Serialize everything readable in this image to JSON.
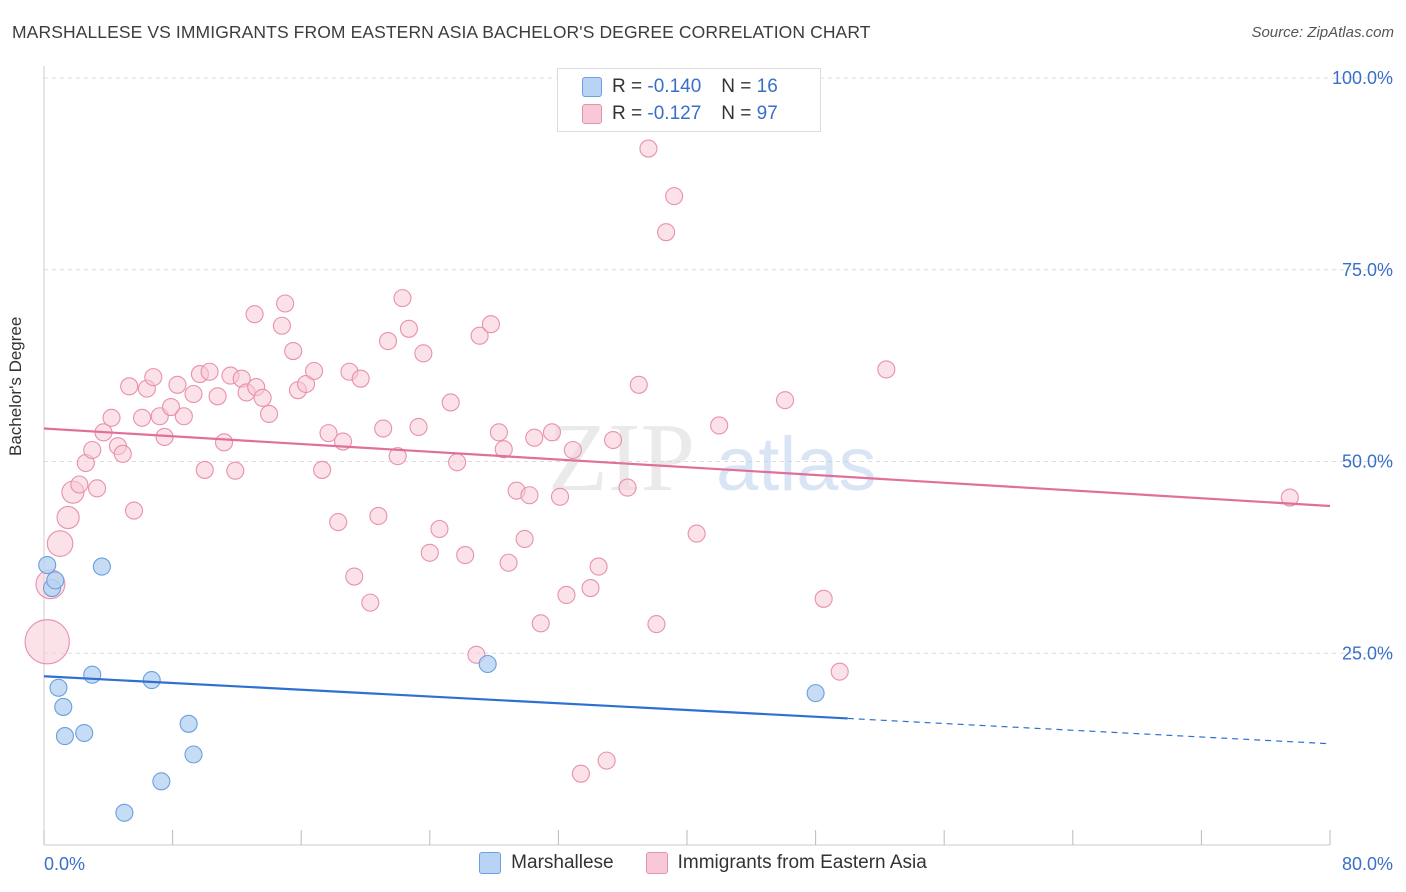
{
  "title": "MARSHALLESE VS IMMIGRANTS FROM EASTERN ASIA BACHELOR'S DEGREE CORRELATION CHART",
  "source": "Source: ZipAtlas.com",
  "watermark": {
    "zip": "ZIP",
    "atlas": "atlas"
  },
  "legend": {
    "rows": [
      {
        "r_label": "R =",
        "r_value": "-0.140",
        "n_label": "N =",
        "n_value": "16"
      },
      {
        "r_label": "R =",
        "r_value": "-0.127",
        "n_label": "N =",
        "n_value": "97"
      }
    ]
  },
  "colors": {
    "blue_fill": "#b8d3f3",
    "blue_stroke": "#6a9fe0",
    "blue_line": "#2e70d2",
    "pink_fill": "#f7c8d6",
    "pink_stroke": "#e891ac",
    "pink_line": "#e0709a",
    "axis_text": "#3a6fc9"
  },
  "chart_data": {
    "type": "scatter",
    "title": "MARSHALLESE VS IMMIGRANTS FROM EASTERN ASIA BACHELOR'S DEGREE CORRELATION CHART",
    "xlabel": "",
    "ylabel": "Bachelor's Degree",
    "xlim": [
      0,
      80
    ],
    "ylim": [
      0,
      100
    ],
    "x_tick_labels": [
      "0.0%",
      "80.0%"
    ],
    "y_ticks": [
      25,
      50,
      75,
      100
    ],
    "y_tick_labels": [
      "25.0%",
      "50.0%",
      "75.0%",
      "100.0%"
    ],
    "grid": true,
    "series": [
      {
        "name": "Marshallese",
        "color": "#6a9fe0",
        "r": -0.14,
        "n": 16,
        "points": [
          {
            "x": 0.2,
            "y": 36.5,
            "s": 1
          },
          {
            "x": 0.5,
            "y": 33.5,
            "s": 1
          },
          {
            "x": 0.7,
            "y": 34.5,
            "s": 1
          },
          {
            "x": 3.6,
            "y": 36.3,
            "s": 1
          },
          {
            "x": 0.9,
            "y": 20.5,
            "s": 1
          },
          {
            "x": 1.2,
            "y": 18.0,
            "s": 1
          },
          {
            "x": 1.3,
            "y": 14.2,
            "s": 1
          },
          {
            "x": 2.5,
            "y": 14.6,
            "s": 1
          },
          {
            "x": 3.0,
            "y": 22.2,
            "s": 1
          },
          {
            "x": 6.7,
            "y": 21.5,
            "s": 1
          },
          {
            "x": 9.0,
            "y": 15.8,
            "s": 1
          },
          {
            "x": 9.3,
            "y": 11.8,
            "s": 1
          },
          {
            "x": 7.3,
            "y": 8.3,
            "s": 1
          },
          {
            "x": 5.0,
            "y": 4.2,
            "s": 1
          },
          {
            "x": 27.6,
            "y": 23.6,
            "s": 1
          },
          {
            "x": 48.0,
            "y": 19.8,
            "s": 1
          }
        ],
        "trend": {
          "x_start": 0,
          "y_start": 22.0,
          "x_solid_end": 50,
          "y_solid_end": 16.5,
          "x_end": 80,
          "y_end": 13.2
        }
      },
      {
        "name": "Immigrants from Eastern Asia",
        "color": "#e891ac",
        "r": -0.127,
        "n": 97,
        "points": [
          {
            "x": 0.2,
            "y": 26.5,
            "s": 2.6
          },
          {
            "x": 0.4,
            "y": 34.0,
            "s": 1.7
          },
          {
            "x": 1.0,
            "y": 39.3,
            "s": 1.5
          },
          {
            "x": 1.5,
            "y": 42.7,
            "s": 1.3
          },
          {
            "x": 1.8,
            "y": 46.0,
            "s": 1.3
          },
          {
            "x": 2.2,
            "y": 47.0,
            "s": 1
          },
          {
            "x": 2.6,
            "y": 49.8,
            "s": 1
          },
          {
            "x": 3.0,
            "y": 51.5,
            "s": 1
          },
          {
            "x": 3.3,
            "y": 46.5,
            "s": 1
          },
          {
            "x": 3.7,
            "y": 53.8,
            "s": 1
          },
          {
            "x": 4.2,
            "y": 55.7,
            "s": 1
          },
          {
            "x": 4.6,
            "y": 52.0,
            "s": 1
          },
          {
            "x": 4.9,
            "y": 51.0,
            "s": 1
          },
          {
            "x": 5.3,
            "y": 59.8,
            "s": 1
          },
          {
            "x": 5.6,
            "y": 43.6,
            "s": 1
          },
          {
            "x": 6.1,
            "y": 55.7,
            "s": 1
          },
          {
            "x": 6.4,
            "y": 59.5,
            "s": 1
          },
          {
            "x": 6.8,
            "y": 61.0,
            "s": 1
          },
          {
            "x": 7.2,
            "y": 55.9,
            "s": 1
          },
          {
            "x": 7.5,
            "y": 53.2,
            "s": 1
          },
          {
            "x": 7.9,
            "y": 57.1,
            "s": 1
          },
          {
            "x": 8.3,
            "y": 60.0,
            "s": 1
          },
          {
            "x": 8.7,
            "y": 55.9,
            "s": 1
          },
          {
            "x": 9.3,
            "y": 58.8,
            "s": 1
          },
          {
            "x": 9.7,
            "y": 61.4,
            "s": 1
          },
          {
            "x": 10.0,
            "y": 48.9,
            "s": 1
          },
          {
            "x": 10.3,
            "y": 61.7,
            "s": 1
          },
          {
            "x": 10.8,
            "y": 58.5,
            "s": 1
          },
          {
            "x": 11.2,
            "y": 52.5,
            "s": 1
          },
          {
            "x": 11.6,
            "y": 61.2,
            "s": 1
          },
          {
            "x": 11.9,
            "y": 48.8,
            "s": 1
          },
          {
            "x": 12.3,
            "y": 60.8,
            "s": 1
          },
          {
            "x": 12.6,
            "y": 59.0,
            "s": 1
          },
          {
            "x": 13.2,
            "y": 59.7,
            "s": 1
          },
          {
            "x": 13.6,
            "y": 58.3,
            "s": 1
          },
          {
            "x": 14.0,
            "y": 56.2,
            "s": 1
          },
          {
            "x": 13.1,
            "y": 69.2,
            "s": 1
          },
          {
            "x": 14.8,
            "y": 67.7,
            "s": 1
          },
          {
            "x": 15.0,
            "y": 70.6,
            "s": 1
          },
          {
            "x": 15.5,
            "y": 64.4,
            "s": 1
          },
          {
            "x": 15.8,
            "y": 59.3,
            "s": 1
          },
          {
            "x": 16.3,
            "y": 60.1,
            "s": 1
          },
          {
            "x": 16.8,
            "y": 61.8,
            "s": 1
          },
          {
            "x": 17.3,
            "y": 48.9,
            "s": 1
          },
          {
            "x": 17.7,
            "y": 53.7,
            "s": 1
          },
          {
            "x": 18.3,
            "y": 42.1,
            "s": 1
          },
          {
            "x": 18.6,
            "y": 52.6,
            "s": 1
          },
          {
            "x": 19.0,
            "y": 61.7,
            "s": 1
          },
          {
            "x": 19.3,
            "y": 35.0,
            "s": 1
          },
          {
            "x": 19.7,
            "y": 60.8,
            "s": 1
          },
          {
            "x": 20.3,
            "y": 31.6,
            "s": 1
          },
          {
            "x": 20.8,
            "y": 42.9,
            "s": 1
          },
          {
            "x": 21.1,
            "y": 54.3,
            "s": 1
          },
          {
            "x": 21.4,
            "y": 65.7,
            "s": 1
          },
          {
            "x": 22.0,
            "y": 50.7,
            "s": 1
          },
          {
            "x": 22.3,
            "y": 71.3,
            "s": 1
          },
          {
            "x": 22.7,
            "y": 67.3,
            "s": 1
          },
          {
            "x": 23.3,
            "y": 54.5,
            "s": 1
          },
          {
            "x": 23.6,
            "y": 64.1,
            "s": 1
          },
          {
            "x": 24.0,
            "y": 38.1,
            "s": 1
          },
          {
            "x": 24.6,
            "y": 41.2,
            "s": 1
          },
          {
            "x": 25.3,
            "y": 57.7,
            "s": 1
          },
          {
            "x": 25.7,
            "y": 49.9,
            "s": 1
          },
          {
            "x": 26.2,
            "y": 37.8,
            "s": 1
          },
          {
            "x": 26.9,
            "y": 24.8,
            "s": 1
          },
          {
            "x": 27.1,
            "y": 66.4,
            "s": 1
          },
          {
            "x": 27.8,
            "y": 67.9,
            "s": 1
          },
          {
            "x": 28.3,
            "y": 53.8,
            "s": 1
          },
          {
            "x": 28.6,
            "y": 51.6,
            "s": 1
          },
          {
            "x": 28.9,
            "y": 36.8,
            "s": 1
          },
          {
            "x": 29.4,
            "y": 46.2,
            "s": 1
          },
          {
            "x": 29.9,
            "y": 39.9,
            "s": 1
          },
          {
            "x": 30.2,
            "y": 45.6,
            "s": 1
          },
          {
            "x": 30.5,
            "y": 53.1,
            "s": 1
          },
          {
            "x": 30.9,
            "y": 28.9,
            "s": 1
          },
          {
            "x": 31.6,
            "y": 53.8,
            "s": 1
          },
          {
            "x": 32.1,
            "y": 45.4,
            "s": 1
          },
          {
            "x": 32.5,
            "y": 32.6,
            "s": 1
          },
          {
            "x": 32.9,
            "y": 51.5,
            "s": 1
          },
          {
            "x": 33.4,
            "y": 9.3,
            "s": 1
          },
          {
            "x": 34.0,
            "y": 33.5,
            "s": 1
          },
          {
            "x": 34.5,
            "y": 36.3,
            "s": 1
          },
          {
            "x": 35.0,
            "y": 11.0,
            "s": 1
          },
          {
            "x": 35.4,
            "y": 52.8,
            "s": 1
          },
          {
            "x": 36.3,
            "y": 46.6,
            "s": 1
          },
          {
            "x": 37.0,
            "y": 60.0,
            "s": 1
          },
          {
            "x": 37.6,
            "y": 90.8,
            "s": 1
          },
          {
            "x": 38.1,
            "y": 28.8,
            "s": 1
          },
          {
            "x": 38.7,
            "y": 79.9,
            "s": 1
          },
          {
            "x": 39.2,
            "y": 84.6,
            "s": 1
          },
          {
            "x": 40.6,
            "y": 40.6,
            "s": 1
          },
          {
            "x": 42.0,
            "y": 54.7,
            "s": 1
          },
          {
            "x": 46.1,
            "y": 58.0,
            "s": 1
          },
          {
            "x": 48.5,
            "y": 32.1,
            "s": 1
          },
          {
            "x": 49.5,
            "y": 22.6,
            "s": 1
          },
          {
            "x": 52.4,
            "y": 62.0,
            "s": 1
          },
          {
            "x": 77.5,
            "y": 45.3,
            "s": 1
          }
        ],
        "trend": {
          "x_start": 0,
          "y_start": 54.3,
          "x_end": 80,
          "y_end": 44.2
        }
      }
    ]
  },
  "bottom_legend": [
    {
      "label": "Marshallese"
    },
    {
      "label": "Immigrants from Eastern Asia"
    }
  ]
}
